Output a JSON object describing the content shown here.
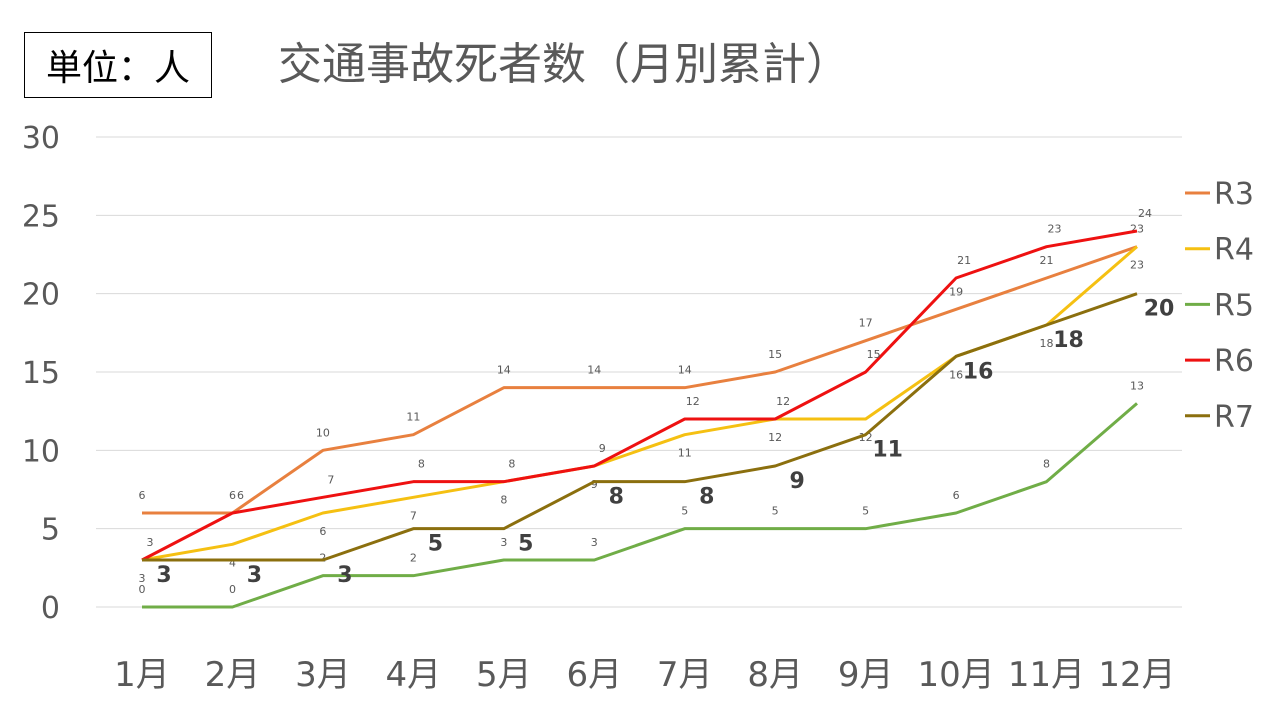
{
  "unit_label": "単位：人",
  "chart_data": {
    "type": "line",
    "title": "交通事故死者数（月別累計）",
    "xlabel": "",
    "ylabel": "",
    "categories": [
      "1月",
      "2月",
      "3月",
      "4月",
      "5月",
      "6月",
      "7月",
      "8月",
      "9月",
      "10月",
      "11月",
      "12月"
    ],
    "ylim": [
      0,
      30
    ],
    "yticks": [
      0,
      5,
      10,
      15,
      20,
      25,
      30
    ],
    "grid": true,
    "legend_position": "right",
    "series": [
      {
        "name": "R3",
        "color": "#E8803F",
        "values": [
          6,
          6,
          10,
          11,
          14,
          14,
          14,
          15,
          17,
          19,
          21,
          23
        ]
      },
      {
        "name": "R4",
        "color": "#F5C012",
        "values": [
          3,
          4,
          6,
          7,
          8,
          9,
          11,
          12,
          12,
          16,
          18,
          23
        ]
      },
      {
        "name": "R5",
        "color": "#70AD47",
        "values": [
          0,
          0,
          2,
          2,
          3,
          3,
          5,
          5,
          5,
          6,
          8,
          13
        ]
      },
      {
        "name": "R6",
        "color": "#EE1111",
        "values": [
          3,
          6,
          7,
          8,
          8,
          9,
          12,
          12,
          15,
          21,
          23,
          24
        ]
      },
      {
        "name": "R7",
        "color": "#8B6F0E",
        "values": [
          3,
          3,
          3,
          5,
          5,
          8,
          8,
          9,
          11,
          16,
          18,
          20
        ]
      }
    ]
  }
}
